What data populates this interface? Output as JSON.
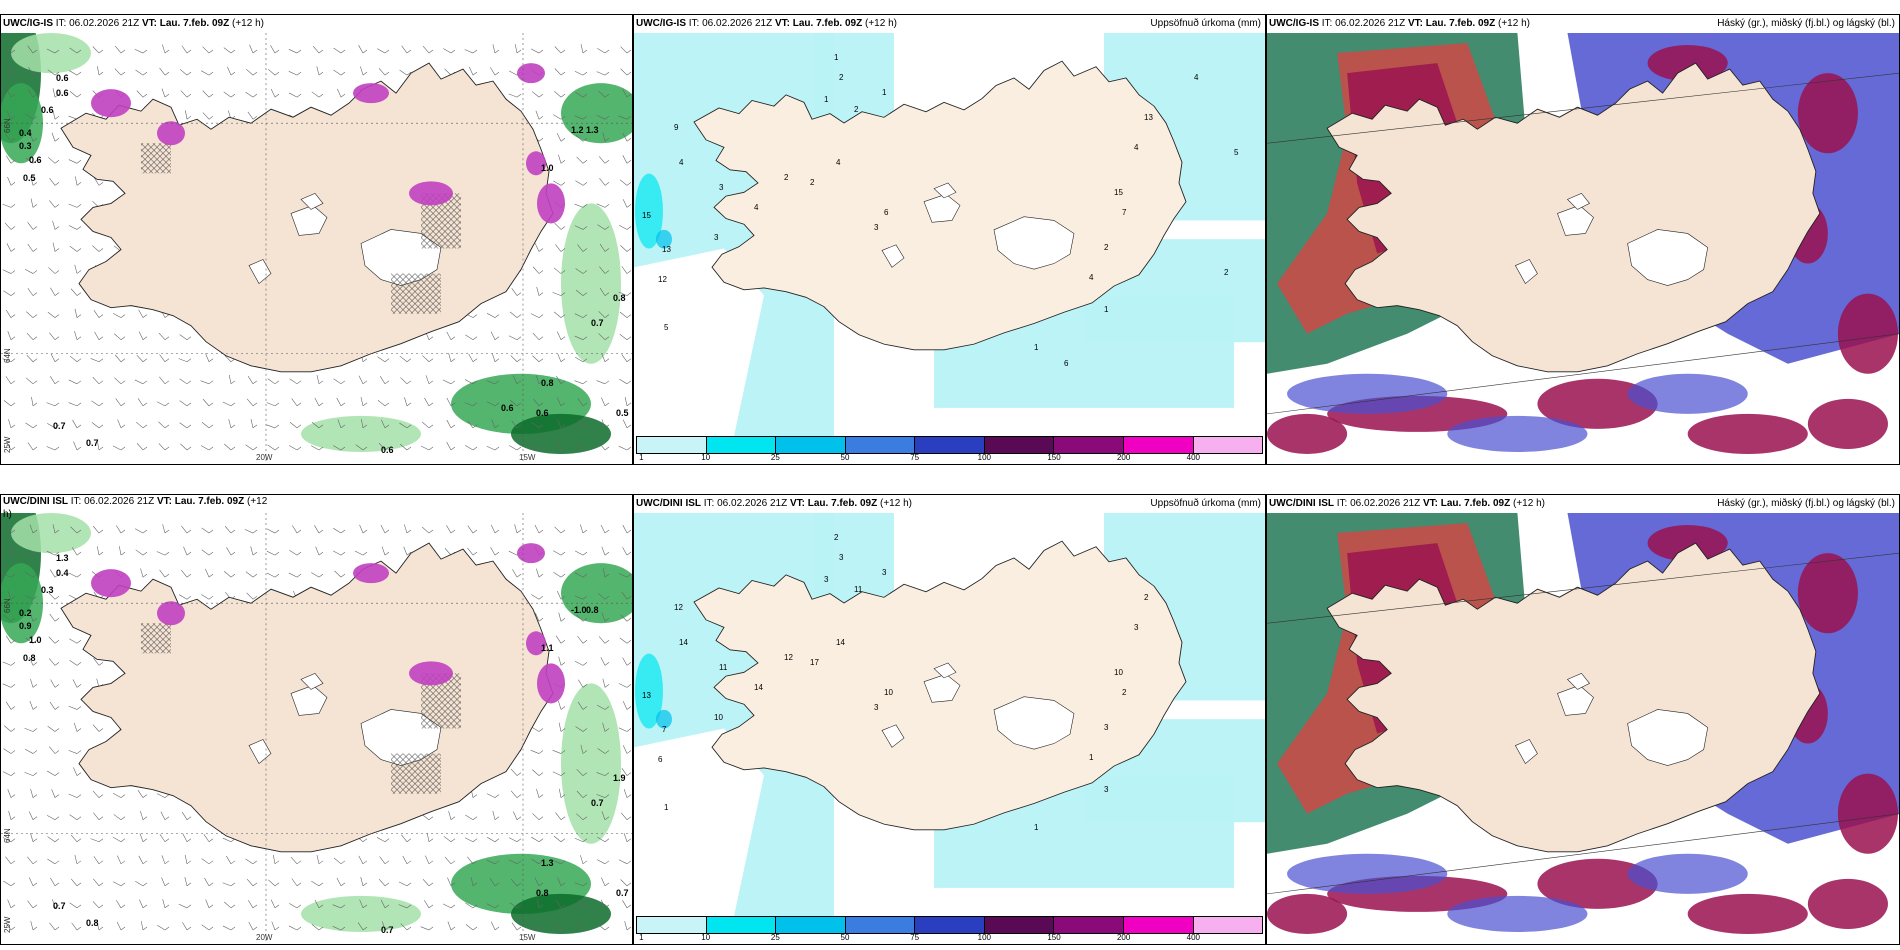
{
  "panels": [
    {
      "id": "p1",
      "model": "UWC/IG-IS",
      "it_label": "IT:",
      "it_value": "06.02.2026 21Z",
      "vt_label": "VT:",
      "vt_value": "Lau. 7.feb. 09Z",
      "step": "(+12 h)",
      "right_title": "",
      "kind": "wind",
      "lon_labels": [
        "20W",
        "15W"
      ],
      "lat_labels": [
        "66N",
        "64N",
        "25W"
      ],
      "values": [
        "0.6",
        "0.6",
        "0.6",
        "0.4",
        "0.3",
        "0.6",
        "0.5",
        "1.2",
        "1.3",
        "1.0",
        "0.8",
        "0.7",
        "0.8",
        "0.6",
        "0.7",
        "0.5",
        "0.7",
        "0.6",
        "0.6"
      ]
    },
    {
      "id": "p2",
      "model": "UWC/IG-IS",
      "it_label": "IT:",
      "it_value": "06.02.2026 21Z",
      "vt_label": "VT:",
      "vt_value": "Lau. 7.feb. 09Z",
      "step": "(+12 h)",
      "right_title": "Uppsöfnuð úrkoma (mm)",
      "kind": "precip",
      "values": [
        "1",
        "2",
        "1",
        "1",
        "2",
        "9",
        "4",
        "3",
        "15",
        "13",
        "12",
        "5",
        "3",
        "4",
        "2",
        "2",
        "4",
        "6",
        "3",
        "13",
        "4",
        "15",
        "7",
        "2",
        "4",
        "1",
        "1",
        "6",
        "4",
        "5",
        "2"
      ]
    },
    {
      "id": "p3",
      "model": "UWC/IG-IS",
      "it_label": "IT:",
      "it_value": "06.02.2026 21Z",
      "vt_label": "VT:",
      "vt_value": "Lau. 7.feb. 09Z",
      "step": "(+12 h)",
      "right_title": "Háský (gr.), miðský (fj.bl.) og lágský (bl.)",
      "kind": "cloud"
    },
    {
      "id": "p4",
      "model": "UWC/DINI ISL",
      "it_label": "IT:",
      "it_value": "06.02.2026 21Z",
      "vt_label": "VT:",
      "vt_value": "Lau. 7.feb. 09Z",
      "step": "(+12",
      "step_wrap": "h)",
      "right_title": "",
      "kind": "wind",
      "lon_labels": [
        "20W",
        "15W"
      ],
      "lat_labels": [
        "66N",
        "64N",
        "25W"
      ],
      "values": [
        "1.3",
        "0.4",
        "0.3",
        "0.2",
        "0.9",
        "1.0",
        "0.8",
        "-1.0",
        "0.8",
        "1.1",
        "1.9",
        "0.7",
        "1.3",
        "0.8",
        "0.7",
        "0.7",
        "0.8",
        "0.7"
      ]
    },
    {
      "id": "p5",
      "model": "UWC/DINI ISL",
      "it_label": "IT:",
      "it_value": "06.02.2026 21Z",
      "vt_label": "VT:",
      "vt_value": "Lau. 7.feb. 09Z",
      "step": "(+12 h)",
      "right_title": "Uppsöfnuð úrkoma (mm)",
      "kind": "precip",
      "values": [
        "2",
        "3",
        "3",
        "3",
        "11",
        "12",
        "14",
        "11",
        "13",
        "7",
        "6",
        "1",
        "10",
        "14",
        "12",
        "17",
        "14",
        "10",
        "3",
        "2",
        "3",
        "10",
        "2",
        "3",
        "1",
        "3",
        "1"
      ]
    },
    {
      "id": "p6",
      "model": "UWC/DINI ISL",
      "it_label": "IT:",
      "it_value": "06.02.2026 21Z",
      "vt_label": "VT:",
      "vt_value": "Lau. 7.feb. 09Z",
      "step": "(+12 h)",
      "right_title": "Háský (gr.), miðský (fj.bl.) og lágský (bl.)",
      "kind": "cloud"
    }
  ],
  "colorbar": {
    "labels": [
      "1",
      "10",
      "25",
      "50",
      "75",
      "100",
      "150",
      "200",
      "400"
    ],
    "colors": [
      "#c8f4f8",
      "#00e5ef",
      "#00c0ec",
      "#3b7ce0",
      "#2a3ec0",
      "#5a0a55",
      "#8a0a7a",
      "#f000c0",
      "#f6b0f0"
    ]
  },
  "colors": {
    "land": "#f5e4d4",
    "land_precip": "#faeee0",
    "sea_wind": "#ffffff",
    "precip_light": "#b8f2f6",
    "green_dark": "#0c6b2a",
    "green_mid": "#36a855",
    "green_light": "#a4e0a8",
    "purple": "#c040c0",
    "magenta_light": "#e89ae8",
    "cloud_high": "#2f8060",
    "cloud_mid": "#9a1050",
    "cloud_low": "#4a50d0",
    "cloud_red": "#e04040"
  }
}
